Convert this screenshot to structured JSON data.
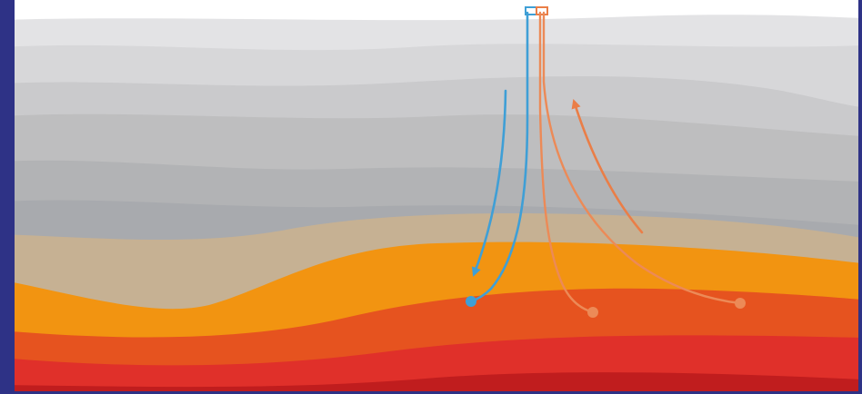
{
  "colors": {
    "frame": "#2e3286",
    "background": "#ffffff",
    "strata": [
      "#e3e3e5",
      "#d7d7d9",
      "#cacacc",
      "#bebebf",
      "#b2b3b5",
      "#a8aaae",
      "#c6b193",
      "#f29411",
      "#e6531f",
      "#e0302a",
      "#c01d1e"
    ],
    "injection_well": "#3f9fd6",
    "production_well": "#ea7e47",
    "production_flow": "#ec8a57"
  },
  "icons": {
    "wellhead": "wellhead-icon",
    "injection_arrow": "arrow-down-icon",
    "production_arrow": "arrow-up-icon"
  }
}
